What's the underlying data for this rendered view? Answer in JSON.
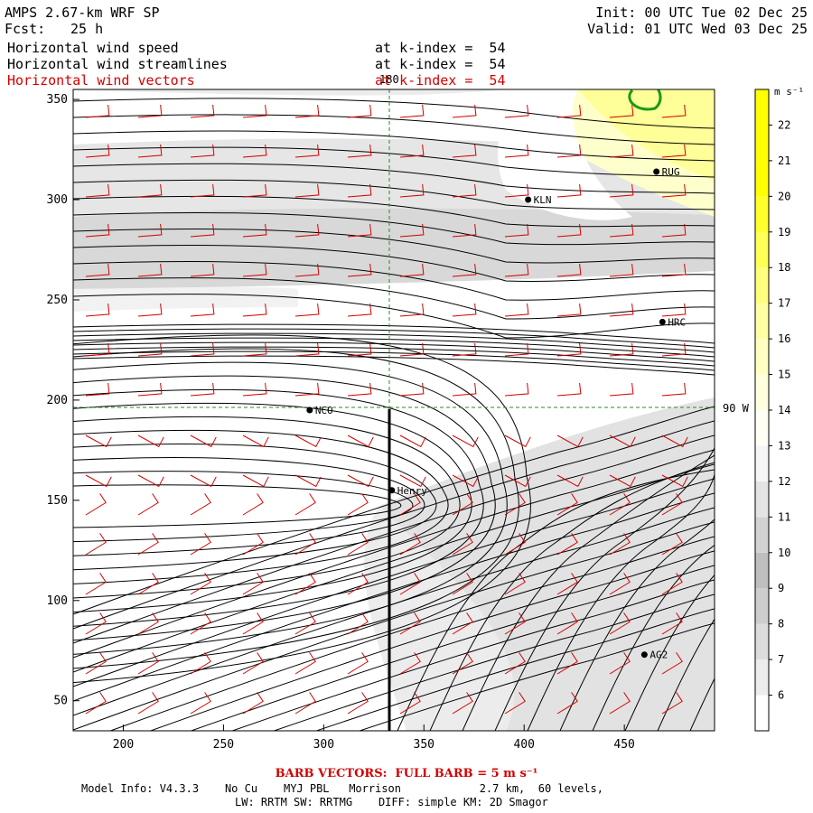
{
  "header": {
    "model": "AMPS 2.67-km WRF SP",
    "forecast_label": "Fcst:",
    "forecast_value": "25 h",
    "init": "Init: 00 UTC Tue 02 Dec 25",
    "valid": "Valid: 01 UTC Wed 03 Dec 25",
    "fields": [
      {
        "name": "Horizontal wind speed",
        "level": "at k-index =  54",
        "color": "#000000"
      },
      {
        "name": "Horizontal wind streamlines",
        "level": "at k-index =  54",
        "color": "#000000"
      },
      {
        "name": "Horizontal wind vectors",
        "level": "at k-index =  54",
        "color": "#d40000"
      }
    ]
  },
  "map": {
    "x_ticks": [
      "200",
      "250",
      "300",
      "350",
      "400",
      "450"
    ],
    "y_ticks": [
      "50",
      "100",
      "150",
      "200",
      "250",
      "300",
      "350"
    ],
    "x_range": [
      175,
      495
    ],
    "y_range": [
      35,
      355
    ],
    "meridian_label": "180",
    "latitude_label": "90 W",
    "stations": [
      {
        "name": "RUG",
        "x": 466,
        "y": 314
      },
      {
        "name": "KLN",
        "x": 402,
        "y": 300
      },
      {
        "name": "HRC",
        "x": 469,
        "y": 239
      },
      {
        "name": "NCO",
        "x": 293,
        "y": 195
      },
      {
        "name": "Henry",
        "x": 334,
        "y": 155
      },
      {
        "name": "AG2",
        "x": 460,
        "y": 73
      }
    ]
  },
  "colorbar": {
    "unit": "m s⁻¹",
    "labels": [
      "6",
      "7",
      "8",
      "9",
      "10",
      "11",
      "12",
      "13",
      "14",
      "15",
      "16",
      "17",
      "18",
      "19",
      "20",
      "21",
      "22"
    ],
    "colors": [
      "#ffffff",
      "#ececec",
      "#dcdcdc",
      "#cdcdcd",
      "#bfbfbf",
      "#d2d2d2",
      "#e4e4e4",
      "#f5f5f5",
      "#fffff4",
      "#ffffde",
      "#ffffc2",
      "#ffffa2",
      "#ffff7e",
      "#ffff55",
      "#ffff2a",
      "#ffff00",
      "#ffff00",
      "#ffff00"
    ]
  },
  "footer": {
    "barb_text": "BARB VECTORS:  FULL BARB = 5 m s⁻¹",
    "model_info": "Model Info: V4.3.3    No Cu    MYJ PBL   Morrison            2.7 km,  60 levels,",
    "physics": "LW: RRTM SW: RRTMG    DIFF: simple KM: 2D Smagor"
  }
}
